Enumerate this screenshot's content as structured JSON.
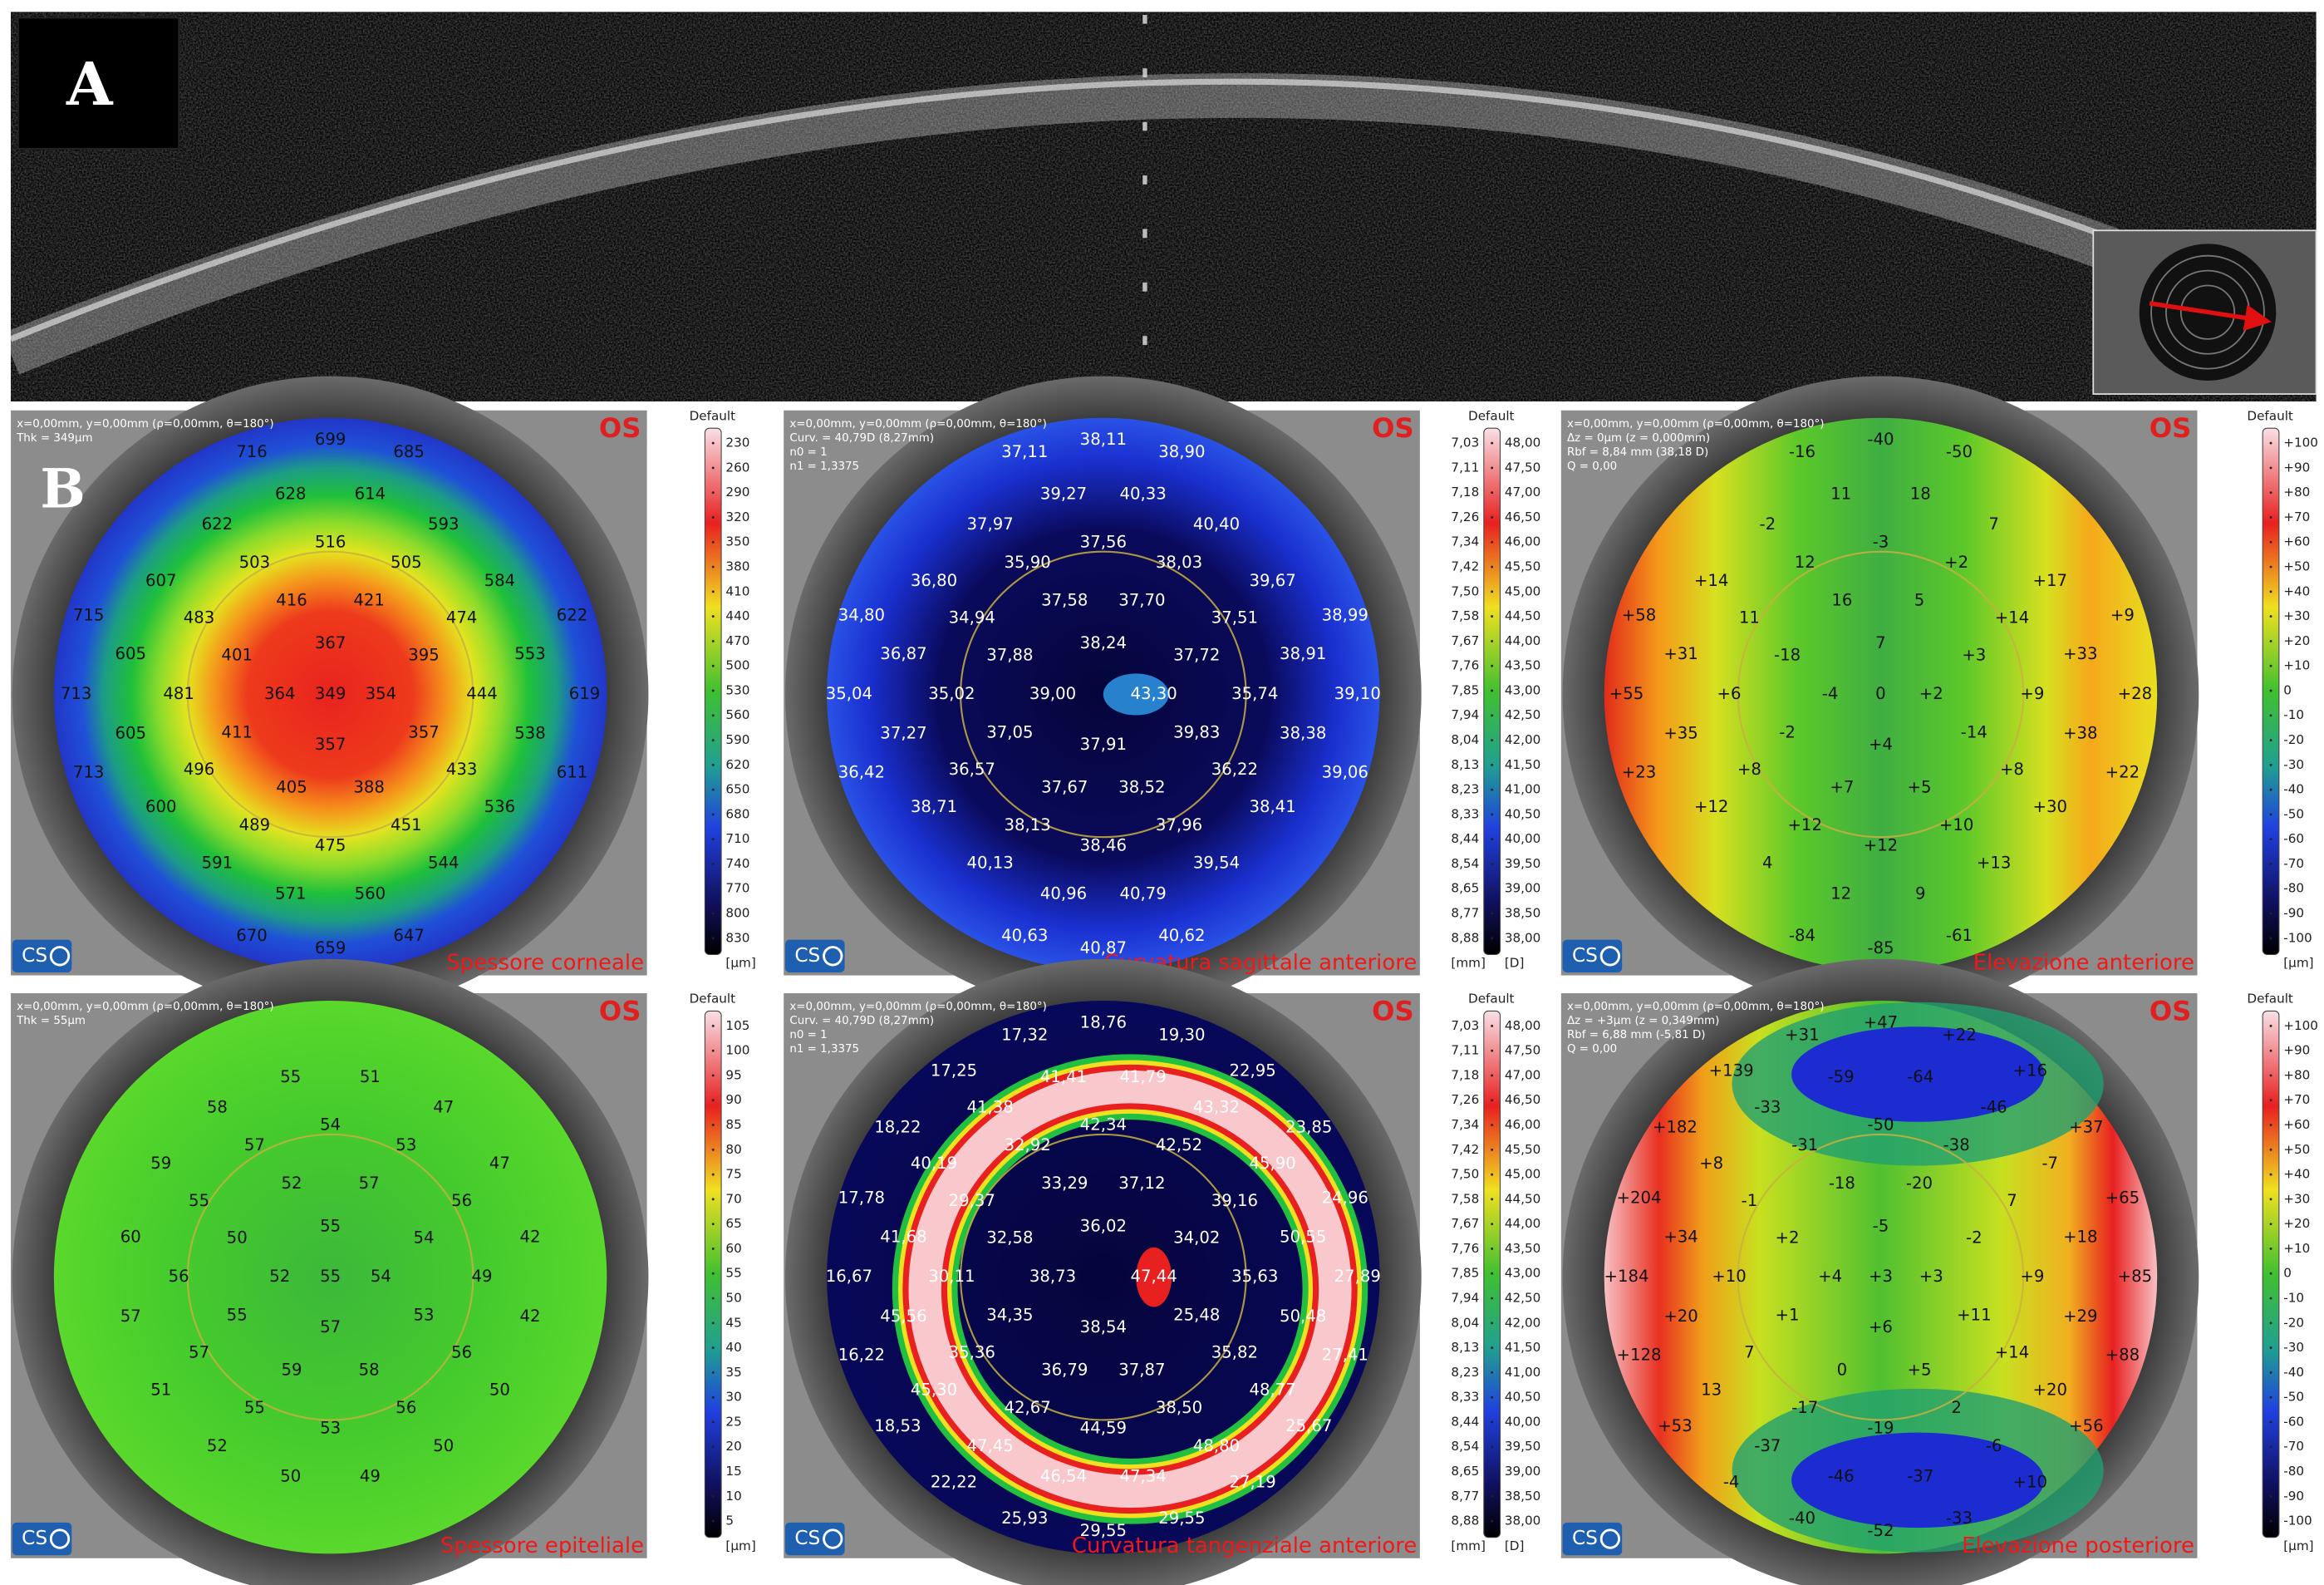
{
  "panel_a": {
    "label": "A"
  },
  "panel_b": {
    "label": "B",
    "maps": [
      {
        "eye": "OS",
        "logo": "CS",
        "title": "Spessore corneale",
        "header": [
          "x=0,00mm, y=0,00mm (ρ=0,00mm, θ=180°)",
          "Thk = 349µm"
        ],
        "rings": [
          [
            349
          ],
          [
            367,
            354,
            357,
            364
          ],
          [
            421,
            395,
            357,
            388,
            405,
            411,
            401,
            416
          ],
          [
            516,
            505,
            474,
            444,
            433,
            451,
            475,
            489,
            496,
            481,
            483,
            503
          ],
          [
            614,
            593,
            584,
            553,
            538,
            536,
            544,
            560,
            571,
            591,
            600,
            605,
            605,
            607,
            622,
            628
          ],
          [
            699,
            685,
            null,
            null,
            622,
            619,
            611,
            null,
            null,
            647,
            659,
            670,
            null,
            null,
            713,
            713,
            715,
            null,
            null,
            716
          ]
        ],
        "scale": {
          "title": "Default",
          "columns": [
            [
              230,
              260,
              290,
              320,
              350,
              380,
              410,
              440,
              470,
              500,
              530,
              560,
              590,
              620,
              650,
              680,
              710,
              740,
              770,
              800,
              830
            ]
          ],
          "units": [
            "[µm]"
          ]
        }
      },
      {
        "eye": "OS",
        "logo": "CS",
        "title": "Curvatura sagittale anteriore",
        "header": [
          "x=0,00mm, y=0,00mm (ρ=0,00mm, θ=180°)",
          "Curv. = 40,79D (8,27mm)",
          "n0 = 1",
          "n1 = 1,3375"
        ],
        "rings": [
          [],
          [
            "38,24",
            "43,30",
            "37,91",
            "39,00"
          ],
          [
            "37,70",
            "37,72",
            "39,83",
            "38,52",
            "37,67",
            "37,05",
            "37,88",
            "37,58"
          ],
          [
            "37,56",
            "38,03",
            "37,51",
            "35,74",
            "36,22",
            "37,96",
            "38,46",
            "38,13",
            "36,57",
            "35,02",
            "34,94",
            "35,90"
          ],
          [
            "40,33",
            "40,40",
            "39,67",
            "38,91",
            "38,38",
            "38,41",
            "39,54",
            "40,79",
            "40,96",
            "40,13",
            "38,71",
            "37,27",
            "36,87",
            "36,80",
            "37,97",
            "39,27"
          ],
          [
            "38,11",
            "38,90",
            null,
            null,
            "38,99",
            "39,10",
            "39,06",
            null,
            null,
            "40,62",
            "40,87",
            "40,63",
            null,
            null,
            "36,42",
            "35,04",
            "34,80",
            null,
            null,
            "37,11"
          ]
        ],
        "scale": {
          "title": "Default",
          "columns": [
            [
              "7,03",
              "7,11",
              "7,18",
              "7,26",
              "7,34",
              "7,42",
              "7,50",
              "7,58",
              "7,67",
              "7,76",
              "7,85",
              "7,94",
              "8,04",
              "8,13",
              "8,23",
              "8,33",
              "8,44",
              "8,54",
              "8,65",
              "8,77",
              "8,88"
            ],
            [
              "48,00",
              "47,50",
              "47,00",
              "46,50",
              "46,00",
              "45,50",
              "45,00",
              "44,50",
              "44,00",
              "43,50",
              "43,00",
              "42,50",
              "42,00",
              "41,50",
              "41,00",
              "40,50",
              "40,00",
              "39,50",
              "39,00",
              "38,50",
              "38,00"
            ]
          ],
          "units": [
            "[mm]",
            "[D]"
          ]
        }
      },
      {
        "eye": "OS",
        "logo": "CS",
        "title": "Elevazione anteriore",
        "header": [
          "x=0,00mm, y=0,00mm (ρ=0,00mm, θ=180°)",
          "Δz = 0µm (z = 0,000mm)",
          "Rbf = 8,84 mm (38,18 D)",
          "Q = 0,00"
        ],
        "rings": [
          [
            0
          ],
          [
            7,
            "+2",
            "+4",
            -4
          ],
          [
            5,
            "+3",
            -14,
            "+5",
            "+7",
            -2,
            -18,
            16
          ],
          [
            -3,
            "+2",
            "+14",
            "+9",
            "+8",
            "+10",
            "+12",
            "+12",
            "+8",
            "+6",
            11,
            12
          ],
          [
            18,
            7,
            "+17",
            "+33",
            "+38",
            "+30",
            "+13",
            9,
            12,
            4,
            "+12",
            "+35",
            "+31",
            "+14",
            -2,
            11
          ],
          [
            -40,
            -50,
            null,
            null,
            "+9",
            "+28",
            "+22",
            null,
            null,
            -61,
            -85,
            -84,
            null,
            null,
            "+23",
            "+55",
            "+58",
            null,
            null,
            -16
          ]
        ],
        "scale": {
          "title": "Default",
          "columns": [
            [
              "+100",
              "+90",
              "+80",
              "+70",
              "+60",
              "+50",
              "+40",
              "+30",
              "+20",
              "+10",
              0,
              -10,
              -20,
              -30,
              -40,
              -50,
              -60,
              -70,
              -80,
              -90,
              -100
            ]
          ],
          "units": [
            "[µm]"
          ]
        }
      },
      {
        "eye": "OS",
        "logo": "CS",
        "title": "Spessore epiteliale",
        "header": [
          "x=0,00mm, y=0,00mm (ρ=0,00mm, θ=180°)",
          "Thk = 55µm"
        ],
        "rings": [
          [
            55
          ],
          [
            55,
            54,
            57,
            52
          ],
          [
            57,
            54,
            53,
            58,
            59,
            55,
            50,
            52
          ],
          [
            54,
            53,
            56,
            49,
            56,
            56,
            53,
            55,
            57,
            56,
            55,
            57
          ],
          [
            51,
            47,
            47,
            42,
            42,
            50,
            50,
            49,
            50,
            52,
            51,
            57,
            60,
            59,
            58,
            55
          ]
        ],
        "scale": {
          "title": "Default",
          "columns": [
            [
              105,
              100,
              95,
              90,
              85,
              80,
              75,
              70,
              65,
              60,
              55,
              50,
              45,
              40,
              35,
              30,
              25,
              20,
              15,
              10,
              5
            ]
          ],
          "units": [
            "[µm]"
          ]
        }
      },
      {
        "eye": "OS",
        "logo": "CS",
        "title": "Curvatura tangenziale anteriore",
        "header": [
          "x=0,00mm, y=0,00mm (ρ=0,00mm, θ=180°)",
          "Curv. = 40,79D (8,27mm)",
          "n0 = 1",
          "n1 = 1,3375"
        ],
        "rings": [
          [],
          [
            "36,02",
            "47,44",
            "38,54",
            "38,73"
          ],
          [
            "37,12",
            "34,02",
            "25,48",
            "37,87",
            "36,79",
            "34,35",
            "32,58",
            "33,29"
          ],
          [
            "42,34",
            "42,52",
            "39,16",
            "35,63",
            "35,82",
            "38,50",
            "44,59",
            "42,67",
            "35,36",
            "30,11",
            "29,37",
            "32,92"
          ],
          [
            "41,79",
            "43,32",
            "45,90",
            "50,55",
            "50,48",
            "48,77",
            "48,80",
            "47,34",
            "46,54",
            "47,45",
            "45,30",
            "45,56",
            "41,68",
            "40,19",
            "41,38",
            "41,41"
          ],
          [
            "18,76",
            "19,30",
            "22,95",
            "23,85",
            "24,96",
            "27,89",
            "27,41",
            "25,67",
            "27,19",
            "29,55",
            "29,55",
            "25,93",
            "22,22",
            "18,53",
            "16,22",
            "16,67",
            "17,78",
            "18,22",
            "17,25",
            "17,32"
          ]
        ],
        "scale": {
          "title": "Default",
          "columns": [
            [
              "7,03",
              "7,11",
              "7,18",
              "7,26",
              "7,34",
              "7,42",
              "7,50",
              "7,58",
              "7,67",
              "7,76",
              "7,85",
              "7,94",
              "8,04",
              "8,13",
              "8,23",
              "8,33",
              "8,44",
              "8,54",
              "8,65",
              "8,77",
              "8,88"
            ],
            [
              "48,00",
              "47,50",
              "47,00",
              "46,50",
              "46,00",
              "45,50",
              "45,00",
              "44,50",
              "44,00",
              "43,50",
              "43,00",
              "42,50",
              "42,00",
              "41,50",
              "41,00",
              "40,50",
              "40,00",
              "39,50",
              "39,00",
              "38,50",
              "38,00"
            ]
          ],
          "units": [
            "[mm]",
            "[D]"
          ]
        }
      },
      {
        "eye": "OS",
        "logo": "CS",
        "title": "Elevazione posteriore",
        "header": [
          "x=0,00mm, y=0,00mm (ρ=0,00mm, θ=180°)",
          "Δz = +3µm (z = 0,349mm)",
          "Rbf = 6,88 mm (-5,81 D)",
          "Q = 0,00"
        ],
        "rings": [
          [
            "+3"
          ],
          [
            -5,
            "+3",
            "+6",
            "+4"
          ],
          [
            -20,
            -2,
            "+11",
            "+5",
            0,
            "+1",
            "+2",
            -18
          ],
          [
            -50,
            -38,
            7,
            "+9",
            "+14",
            2,
            -19,
            -17,
            7,
            "+10",
            -1,
            -31
          ],
          [
            -64,
            -46,
            -7,
            "+18",
            "+29",
            "+20",
            -6,
            -37,
            -46,
            -37,
            13,
            "+20",
            "+34",
            "+8",
            -33,
            -59
          ],
          [
            "+47",
            "+22",
            "+16",
            "+37",
            "+65",
            "+85",
            "+88",
            "+56",
            "+10",
            -33,
            -52,
            -40,
            -4,
            "+53",
            "+128",
            "+184",
            "+204",
            "+182",
            "+139",
            "+31"
          ]
        ],
        "scale": {
          "title": "Default",
          "columns": [
            [
              "+100",
              "+90",
              "+80",
              "+70",
              "+60",
              "+50",
              "+40",
              "+30",
              "+20",
              "+10",
              0,
              -10,
              -20,
              -30,
              -40,
              -50,
              -60,
              -70,
              -80,
              -90,
              -100
            ]
          ],
          "units": [
            "[µm]"
          ]
        }
      }
    ]
  }
}
